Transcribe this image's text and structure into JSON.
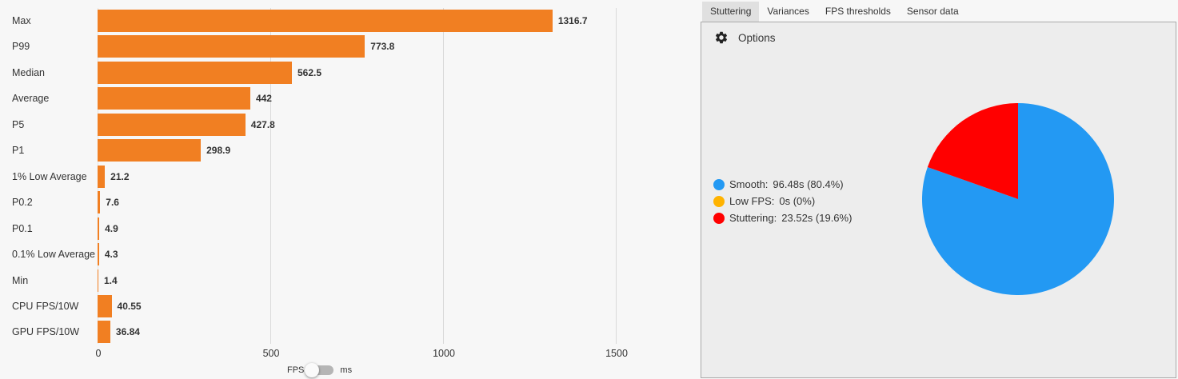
{
  "chart_data": [
    {
      "type": "bar",
      "orientation": "horizontal",
      "title": "",
      "xlabel": "",
      "ylabel": "",
      "categories": [
        "Max",
        "P99",
        "Median",
        "Average",
        "P5",
        "P1",
        "1% Low Average",
        "P0.2",
        "P0.1",
        "0.1% Low Average",
        "Min",
        "CPU FPS/10W",
        "GPU FPS/10W"
      ],
      "values": [
        1316.7,
        773.8,
        562.5,
        442,
        427.8,
        298.9,
        21.2,
        7.6,
        4.9,
        4.3,
        1.4,
        40.55,
        36.84
      ],
      "value_labels": [
        "1316.7",
        "773.8",
        "562.5",
        "442",
        "427.8",
        "298.9",
        "21.2",
        "7.6",
        "4.9",
        "4.3",
        "1.4",
        "40.55",
        "36.84"
      ],
      "xlim": [
        0,
        1500
      ],
      "x_ticks": [
        "0",
        "500",
        "1000",
        "1500"
      ],
      "grid": true,
      "color": "#f17f22"
    },
    {
      "type": "pie",
      "title": "",
      "categories": [
        "Smooth",
        "Low FPS",
        "Stuttering"
      ],
      "values": [
        96.48,
        0,
        23.52
      ],
      "percentages": [
        80.4,
        0,
        19.6
      ],
      "units": "s",
      "colors": [
        "#2399f3",
        "#ffb300",
        "#ff0000"
      ],
      "legend_position": "left"
    }
  ],
  "toggle": {
    "left_label": "FPS",
    "right_label": "ms",
    "state": "FPS"
  },
  "tabs": [
    {
      "label": "Stuttering",
      "active": true
    },
    {
      "label": "Variances",
      "active": false
    },
    {
      "label": "FPS thresholds",
      "active": false
    },
    {
      "label": "Sensor data",
      "active": false
    }
  ],
  "panel": {
    "options_label": "Options",
    "options_icon": "gear-icon",
    "legend": [
      {
        "name": "Smooth:",
        "value": "96.48s (80.4%)",
        "color": "#2399f3"
      },
      {
        "name": "Low FPS:",
        "value": "0s (0%)",
        "color": "#ffb300"
      },
      {
        "name": "Stuttering:",
        "value": "23.52s (19.6%)",
        "color": "#ff0000"
      }
    ]
  }
}
